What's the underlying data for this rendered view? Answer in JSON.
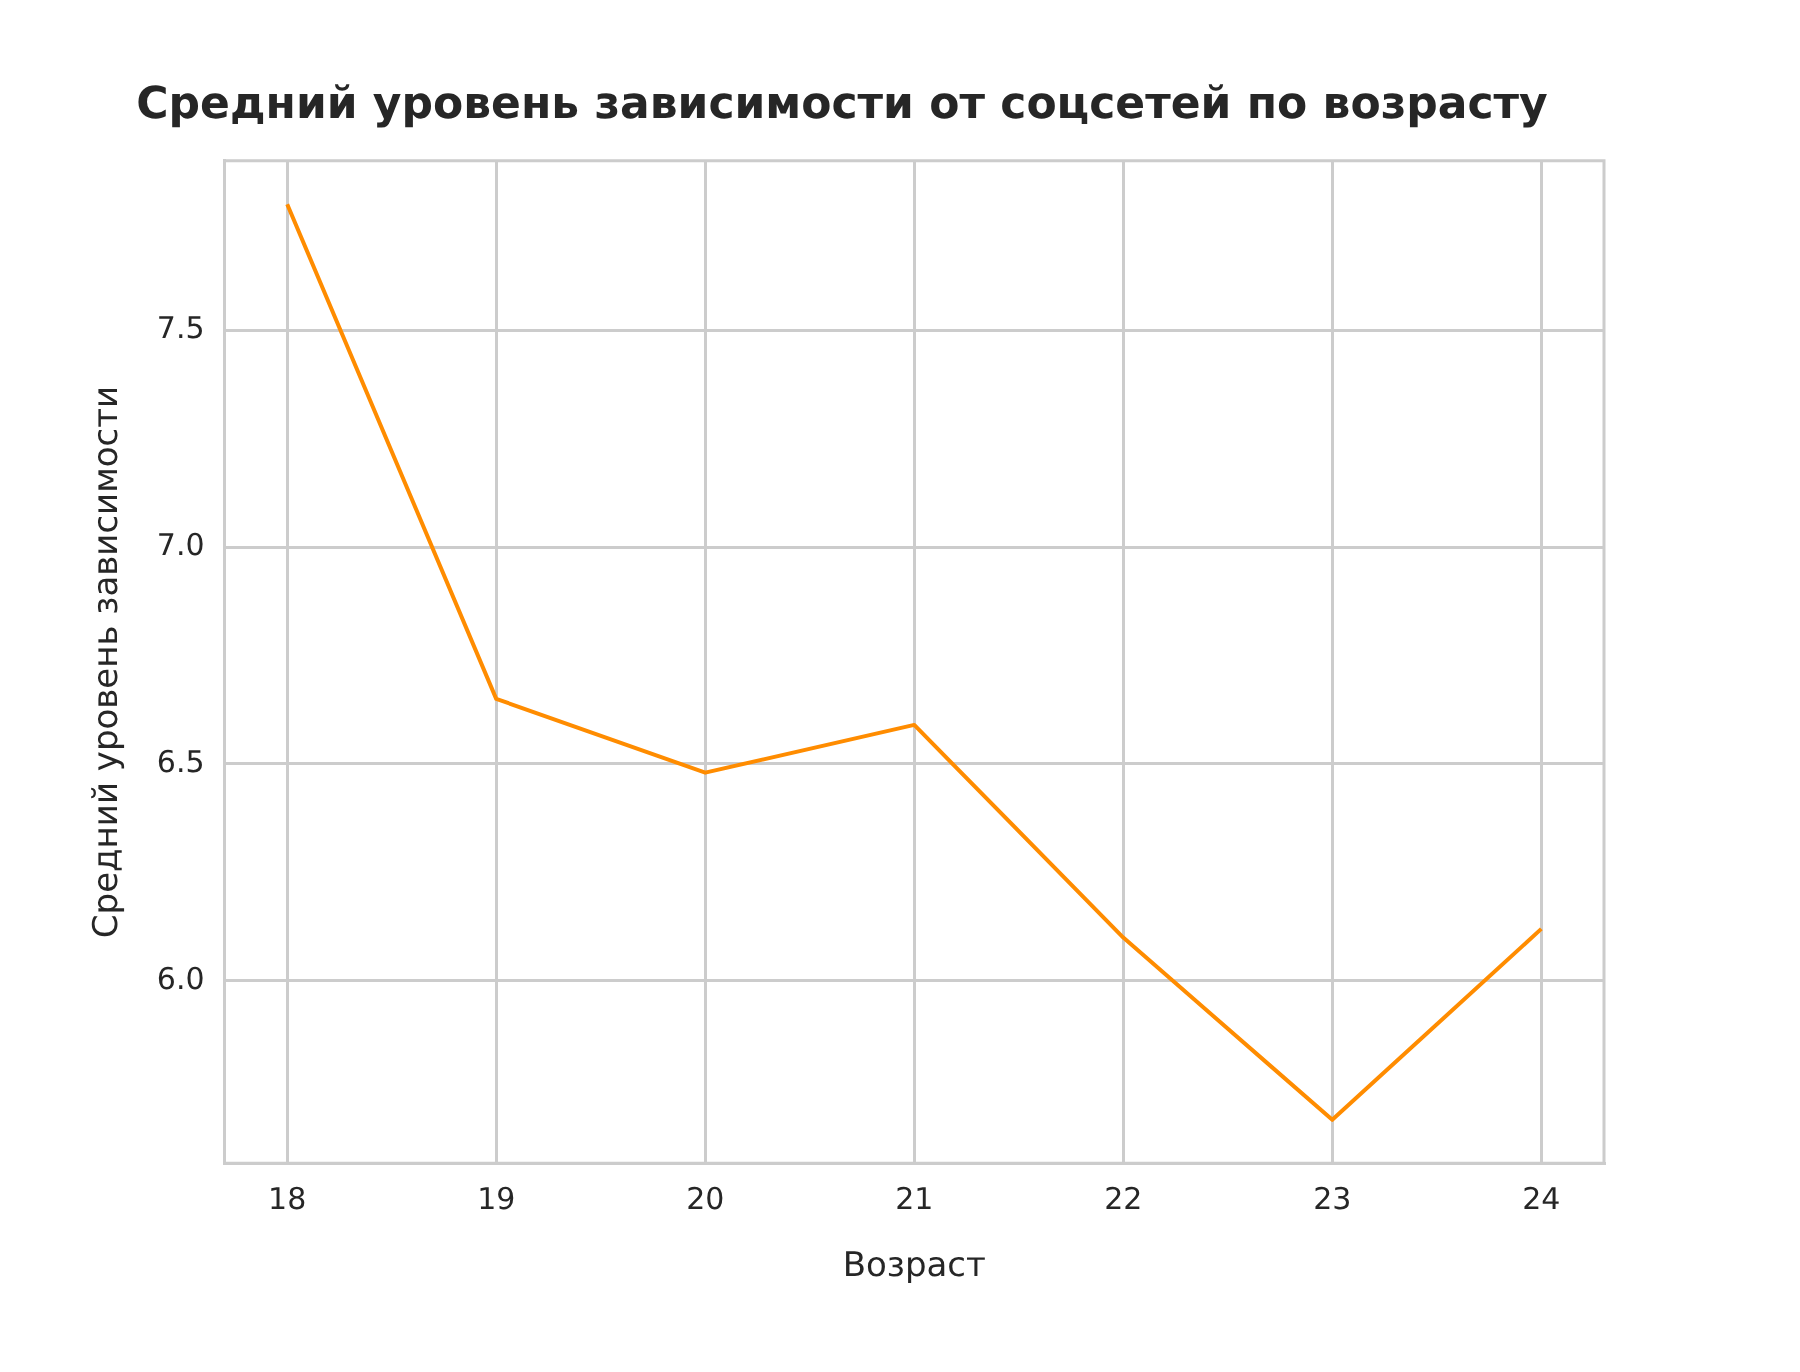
{
  "chart_data": {
    "type": "line",
    "title": "Средний уровень зависимости от соцсетей по возрасту",
    "xlabel": "Возраст",
    "ylabel": "Средний уровень зависимости",
    "x": [
      18,
      19,
      20,
      21,
      22,
      23,
      24
    ],
    "series": [
      {
        "color": "#ff8c00",
        "values": [
          7.79,
          6.65,
          6.48,
          6.59,
          6.1,
          5.68,
          6.12
        ]
      }
    ],
    "xlim": [
      17.7,
      24.3
    ],
    "xticks": [
      18,
      19,
      20,
      21,
      22,
      23,
      24
    ],
    "ylim": [
      5.58,
      7.89
    ],
    "yticks": [
      {
        "value": 6,
        "label": "6.0"
      },
      {
        "value": 6.5,
        "label": "6.5"
      },
      {
        "value": 7,
        "label": "7.0"
      },
      {
        "value": 7.5,
        "label": "7.5"
      }
    ],
    "grid": true,
    "legend": false,
    "marker": "none",
    "line_style": "solid"
  }
}
